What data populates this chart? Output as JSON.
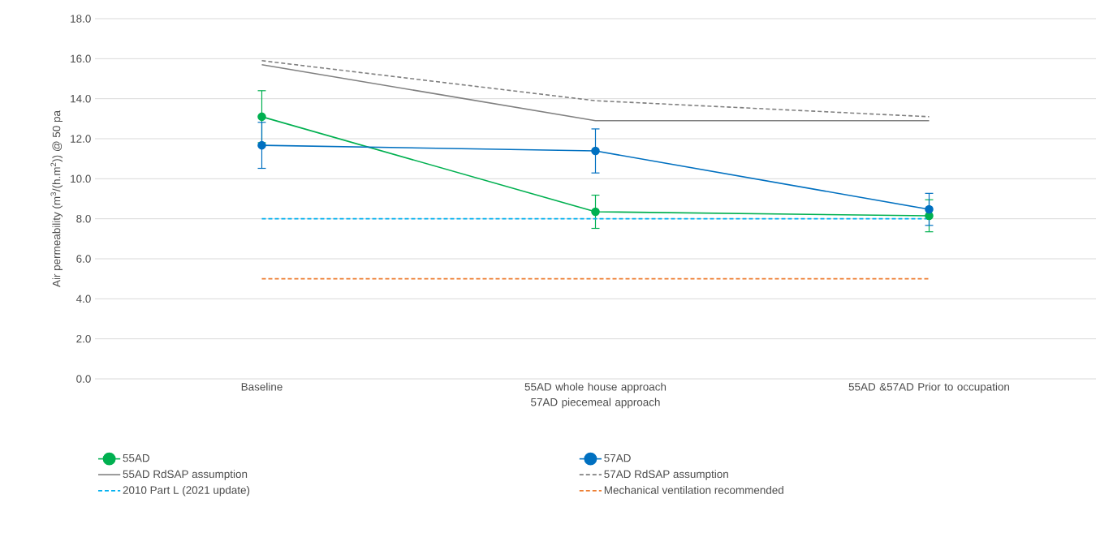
{
  "chart_data": {
    "type": "line",
    "ylabel": "Air permeability (m$^{3}$/(h.m$^{2}$)) @ 50 pa",
    "categories": [
      "Baseline",
      "55AD whole house approach 57AD piecemeal approach",
      "55AD &57AD Prior to occupation"
    ],
    "series": [
      {
        "name": "55AD",
        "color": "#00b050",
        "values": [
          13.1,
          8.35,
          8.15
        ],
        "errors": [
          1.3,
          0.83,
          0.8
        ],
        "marker": "circle",
        "line_style": "solid"
      },
      {
        "name": "57AD",
        "color": "#0070c0",
        "values": [
          11.67,
          11.39,
          8.47
        ],
        "errors": [
          1.15,
          1.1,
          0.8
        ],
        "marker": "circle",
        "line_style": "solid"
      },
      {
        "name": "55AD RdSAP assumption",
        "color": "#808080",
        "values": [
          15.7,
          12.9,
          12.9
        ],
        "marker": "none",
        "line_style": "solid"
      },
      {
        "name": "57AD RdSAP assumption",
        "color": "#808080",
        "values": [
          15.9,
          13.9,
          13.1
        ],
        "marker": "none",
        "line_style": "dashed"
      },
      {
        "name": "2010 Part L (2021 update)",
        "color": "#00b0f0",
        "values": [
          8.0,
          8.0,
          8.0
        ],
        "marker": "none",
        "line_style": "dashed"
      },
      {
        "name": "Mechanical ventilation recommended",
        "color": "#ed7d31",
        "values": [
          5.0,
          5.0,
          5.0
        ],
        "marker": "none",
        "line_style": "dashed"
      }
    ],
    "ylim": [
      0,
      18
    ],
    "yticks": [
      {
        "value": 0,
        "label": "0.0"
      },
      {
        "value": 2,
        "label": "2.0"
      },
      {
        "value": 4,
        "label": "4.0"
      },
      {
        "value": 6,
        "label": "6.0"
      },
      {
        "value": 8,
        "label": "8.0"
      },
      {
        "value": 10,
        "label": "10.0"
      },
      {
        "value": 12,
        "label": "12.0"
      },
      {
        "value": 14,
        "label": "14.0"
      },
      {
        "value": 16,
        "label": "16.0"
      },
      {
        "value": 18,
        "label": "18.0"
      }
    ],
    "grid": "y",
    "legend": "bottom"
  }
}
